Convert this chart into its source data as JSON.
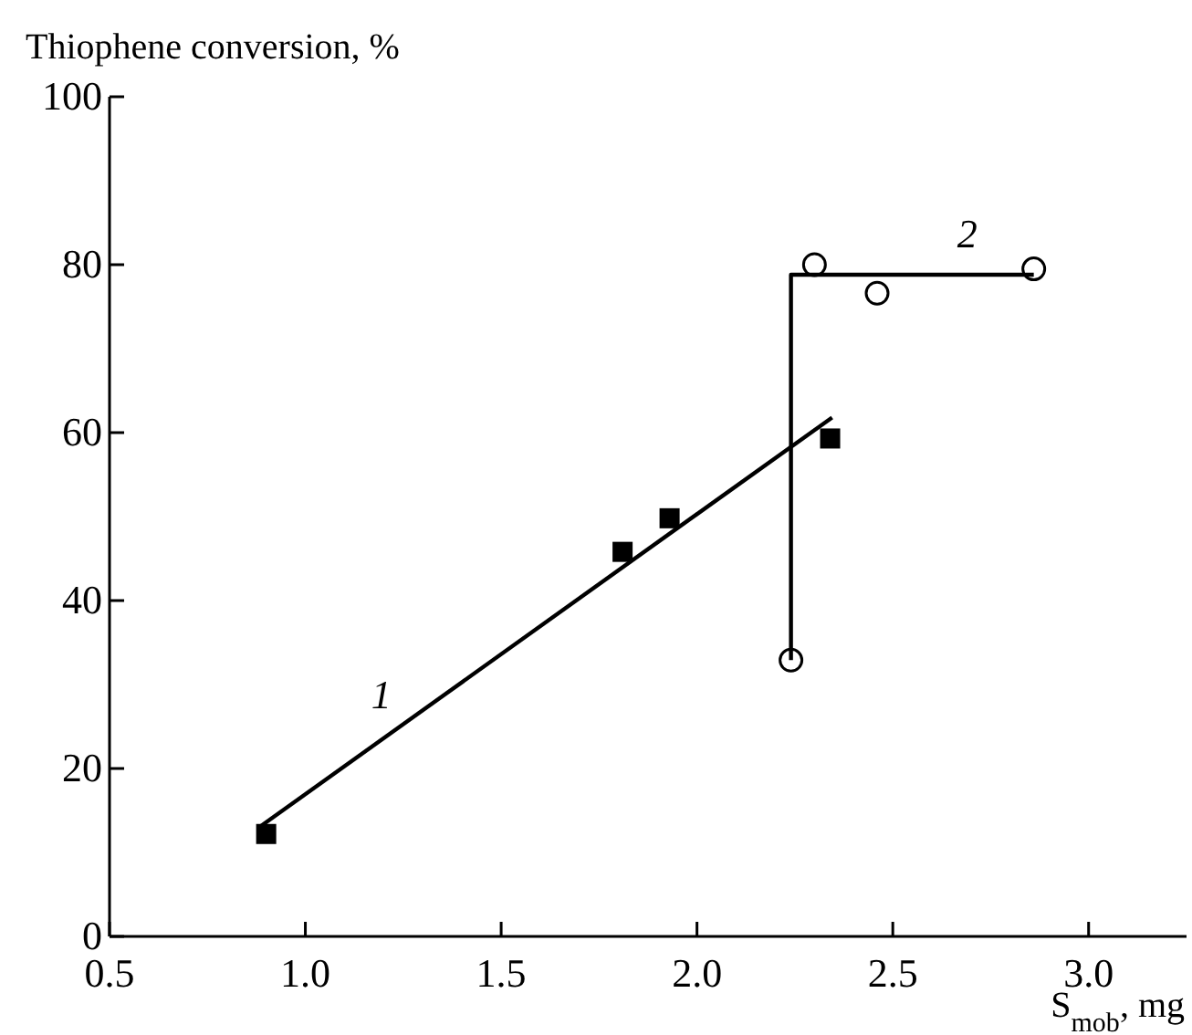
{
  "chart_data": {
    "type": "scatter",
    "xlabel": "S$_{mob}$, mg",
    "ylabel": "Thiophene conversion, %",
    "xlim": [
      0.5,
      3.25
    ],
    "xticks": [
      {
        "value": 0.5,
        "label": "0.5"
      },
      {
        "value": 1,
        "label": "1.0"
      },
      {
        "value": 1.5,
        "label": "1.5"
      },
      {
        "value": 2,
        "label": "2.0"
      },
      {
        "value": 2.5,
        "label": "2.5"
      },
      {
        "value": 3,
        "label": "3.0"
      }
    ],
    "ylim": [
      0,
      100
    ],
    "yticks": [
      0,
      20,
      40,
      60,
      80,
      100
    ],
    "grid": false,
    "series": [
      {
        "marker": "square",
        "color": "#000000",
        "x": [
          0.9,
          1.81,
          1.93,
          2.34
        ],
        "values": [
          12.2,
          45.8,
          49.8,
          59.3
        ]
      },
      {
        "type": "line",
        "name": "1",
        "marker": "none",
        "line_style": "solid",
        "color": "#000000",
        "x": [
          0.885,
          2.345
        ],
        "values": [
          13.1,
          61.8
        ]
      },
      {
        "marker": "circle",
        "color": "#000000",
        "x": [
          2.24,
          2.3,
          2.46,
          2.86
        ],
        "values": [
          32.9,
          80.0,
          76.6,
          79.5
        ]
      },
      {
        "type": "line",
        "name": "2",
        "marker": "none",
        "line_style": "solid",
        "color": "#000000",
        "x": [
          2.24,
          2.24,
          2.86
        ],
        "values": [
          32.9,
          78.8,
          78.8
        ]
      }
    ]
  }
}
